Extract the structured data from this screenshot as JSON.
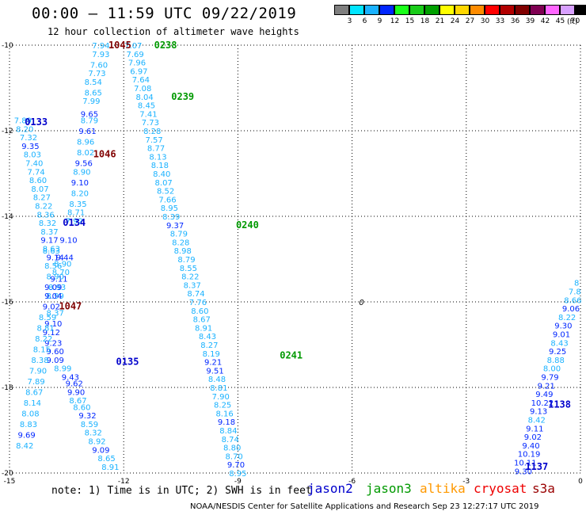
{
  "title": "00:00 – 11:59 UTC 09/22/2019",
  "subtitle": "12 hour collection of altimeter wave heights",
  "colorbar": {
    "unit": "(ft)",
    "colors": [
      "#7f7f7f",
      "#00e5ff",
      "#1ab2ff",
      "#0026ff",
      "#1aff1a",
      "#19cc19",
      "#00a000",
      "#ffff00",
      "#ffd700",
      "#ff8c00",
      "#ff0000",
      "#b20000",
      "#800000",
      "#7f0052",
      "#ff66ff",
      "#d8a0ff",
      "#000000"
    ],
    "labels": [
      "3",
      "6",
      "9",
      "12",
      "15",
      "18",
      "21",
      "24",
      "27",
      "30",
      "33",
      "36",
      "39",
      "42",
      "45",
      "70"
    ]
  },
  "note": "note: 1) Time is in UTC; 2) SWH is in feet",
  "satellites": [
    {
      "name": "jason2",
      "color": "#0000cc"
    },
    {
      "name": "jason3",
      "color": "#009900"
    },
    {
      "name": "altika",
      "color": "#ff9900"
    },
    {
      "name": "cryosat",
      "color": "#ee0000"
    },
    {
      "name": "s3a",
      "color": "#990000"
    }
  ],
  "footer": "NOAA/NESDIS Center for Satellite Applications and Research   Sep 23 12:27:17 UTC 2019",
  "chart_data": {
    "type": "scatter",
    "title": "00:00 – 11:59 UTC 09/22/2019",
    "subtitle": "12 hour collection of altimeter wave heights",
    "xlim": [
      -15,
      0
    ],
    "ylim": [
      -20,
      -10
    ],
    "xticks": [
      -15,
      -12,
      -9,
      -6,
      -3,
      0
    ],
    "yticks": [
      -10,
      -12,
      -14,
      -16,
      -18,
      -20
    ],
    "grid": true,
    "colors": {
      "light": "#1ab2ff",
      "dark": "#0026ff",
      "jason3": "#009900",
      "pass_blue": "#0000cc",
      "pass_red": "#800000"
    },
    "track_labels": [
      {
        "text": "1045",
        "x": -12.1,
        "y": -10.0,
        "color": "pass_red"
      },
      {
        "text": "0238",
        "x": -10.9,
        "y": -10.0,
        "color": "jason3"
      },
      {
        "text": "0239",
        "x": -10.45,
        "y": -11.2,
        "color": "jason3"
      },
      {
        "text": "0133",
        "x": -14.3,
        "y": -11.8,
        "color": "pass_blue"
      },
      {
        "text": "1046",
        "x": -12.5,
        "y": -12.55,
        "color": "pass_red"
      },
      {
        "text": "0134",
        "x": -13.3,
        "y": -14.15,
        "color": "pass_blue"
      },
      {
        "text": "0240",
        "x": -8.75,
        "y": -14.2,
        "color": "jason3"
      },
      {
        "text": "1047",
        "x": -13.4,
        "y": -16.1,
        "color": "pass_red"
      },
      {
        "text": "0135",
        "x": -11.9,
        "y": -17.4,
        "color": "pass_blue"
      },
      {
        "text": "0241",
        "x": -7.6,
        "y": -17.25,
        "color": "jason3"
      },
      {
        "text": "1138",
        "x": -0.55,
        "y": -18.4,
        "color": "pass_blue"
      },
      {
        "text": "1137",
        "x": -1.15,
        "y": -19.85,
        "color": "pass_blue"
      }
    ],
    "marker": {
      "text": "0",
      "x": -5.75,
      "y": -16.0
    },
    "points": [
      [
        "7.94",
        -12.6,
        -10.0,
        0
      ],
      [
        "7.93",
        -12.6,
        -10.2,
        0
      ],
      [
        "7.60",
        -12.65,
        -10.45,
        0
      ],
      [
        "7.73",
        -12.7,
        -10.65,
        0
      ],
      [
        "8.54",
        -12.8,
        -10.85,
        0
      ],
      [
        "8.65",
        -12.8,
        -11.1,
        0
      ],
      [
        "7.99",
        -12.85,
        -11.3,
        0
      ],
      [
        "9.65",
        -12.9,
        -11.6,
        1
      ],
      [
        "8.79",
        -12.9,
        -11.75,
        0
      ],
      [
        "9.61",
        -12.95,
        -12.0,
        1
      ],
      [
        "8.96",
        -13.0,
        -12.25,
        0
      ],
      [
        "8.02",
        -13.0,
        -12.5,
        0
      ],
      [
        "9.56",
        -13.05,
        -12.75,
        1
      ],
      [
        "8.90",
        -13.1,
        -12.95,
        0
      ],
      [
        "9.10",
        -13.15,
        -13.2,
        1
      ],
      [
        "8.20",
        -13.15,
        -13.45,
        0
      ],
      [
        "8.35",
        -13.2,
        -13.7,
        0
      ],
      [
        "8.71",
        -13.25,
        -13.9,
        0
      ],
      [
        "7.92",
        -13.3,
        -14.1,
        0
      ],
      [
        "9.10",
        -13.45,
        -14.55,
        1
      ],
      [
        "9.44",
        -13.55,
        -14.95,
        1
      ],
      [
        "8.90",
        -13.6,
        -15.1,
        0
      ],
      [
        "8.70",
        -13.65,
        -15.3,
        0
      ],
      [
        "9.11",
        -13.7,
        -15.45,
        1
      ],
      [
        "8.93",
        -13.75,
        -15.65,
        0
      ],
      [
        "8.99",
        -13.8,
        -15.85,
        0
      ],
      [
        "8.37",
        -13.8,
        -16.25,
        0
      ],
      [
        "9.10",
        -13.85,
        -16.5,
        1
      ],
      [
        "9.12",
        -13.9,
        -16.7,
        1
      ],
      [
        "9.23",
        -13.85,
        -16.95,
        1
      ],
      [
        "9.60",
        -13.8,
        -17.15,
        1
      ],
      [
        "9.09",
        -13.8,
        -17.35,
        1
      ],
      [
        "8.99",
        -13.6,
        -17.55,
        0
      ],
      [
        "9.43",
        -13.4,
        -17.75,
        1
      ],
      [
        "9.62",
        -13.3,
        -17.9,
        1
      ],
      [
        "9.90",
        -13.25,
        -18.1,
        1
      ],
      [
        "8.67",
        -13.2,
        -18.3,
        0
      ],
      [
        "8.60",
        -13.1,
        -18.45,
        0
      ],
      [
        "9.32",
        -12.95,
        -18.65,
        1
      ],
      [
        "8.59",
        -12.9,
        -18.85,
        0
      ],
      [
        "8.32",
        -12.8,
        -19.05,
        0
      ],
      [
        "8.92",
        -12.7,
        -19.25,
        0
      ],
      [
        "9.09",
        -12.6,
        -19.45,
        1
      ],
      [
        "8.65",
        -12.45,
        -19.65,
        0
      ],
      [
        "8.91",
        -12.35,
        -19.85,
        0
      ],
      [
        "7.89",
        -14.65,
        -11.75,
        0
      ],
      [
        "8.20",
        -14.6,
        -11.95,
        0
      ],
      [
        "7.32",
        -14.5,
        -12.15,
        0
      ],
      [
        "9.35",
        -14.45,
        -12.35,
        1
      ],
      [
        "8.03",
        -14.4,
        -12.55,
        0
      ],
      [
        "7.40",
        -14.35,
        -12.75,
        0
      ],
      [
        "7.74",
        -14.3,
        -12.95,
        0
      ],
      [
        "8.60",
        -14.25,
        -13.15,
        0
      ],
      [
        "8.07",
        -14.2,
        -13.35,
        0
      ],
      [
        "8.27",
        -14.15,
        -13.55,
        0
      ],
      [
        "8.22",
        -14.1,
        -13.75,
        0
      ],
      [
        "8.36",
        -14.05,
        -13.95,
        0
      ],
      [
        "8.32",
        -14.0,
        -14.15,
        0
      ],
      [
        "8.37",
        -13.95,
        -14.35,
        0
      ],
      [
        "9.17",
        -13.95,
        -14.55,
        1
      ],
      [
        "8.63",
        -13.9,
        -14.75,
        0
      ],
      [
        "8.63",
        -13.9,
        -14.8,
        0
      ],
      [
        "9.14",
        -13.8,
        -14.95,
        1
      ],
      [
        "8.56",
        -13.85,
        -15.15,
        0
      ],
      [
        "8.90",
        -13.8,
        -15.4,
        0
      ],
      [
        "9.09",
        -13.85,
        -15.65,
        1
      ],
      [
        "9.04",
        -13.85,
        -15.85,
        1
      ],
      [
        "9.02",
        -13.9,
        -16.1,
        1
      ],
      [
        "8.59",
        -14.0,
        -16.35,
        0
      ],
      [
        "8.81",
        -14.05,
        -16.6,
        0
      ],
      [
        "8.22",
        -14.1,
        -16.85,
        0
      ],
      [
        "8.15",
        -14.15,
        -17.1,
        0
      ],
      [
        "8.38",
        -14.2,
        -17.35,
        0
      ],
      [
        "7.90",
        -14.25,
        -17.6,
        0
      ],
      [
        "7.89",
        -14.3,
        -17.85,
        0
      ],
      [
        "8.67",
        -14.35,
        -18.1,
        0
      ],
      [
        "8.14",
        -14.4,
        -18.35,
        0
      ],
      [
        "8.08",
        -14.45,
        -18.6,
        0
      ],
      [
        "8.83",
        -14.5,
        -18.85,
        0
      ],
      [
        "9.69",
        -14.55,
        -19.1,
        1
      ],
      [
        "8.42",
        -14.6,
        -19.35,
        0
      ],
      [
        "7.07",
        -11.75,
        -10.0,
        0
      ],
      [
        "7.69",
        -11.7,
        -10.2,
        0
      ],
      [
        "7.96",
        -11.65,
        -10.4,
        0
      ],
      [
        "6.97",
        -11.6,
        -10.6,
        0
      ],
      [
        "7.64",
        -11.55,
        -10.8,
        0
      ],
      [
        "7.08",
        -11.5,
        -11.0,
        0
      ],
      [
        "8.04",
        -11.45,
        -11.2,
        0
      ],
      [
        "8.45",
        -11.4,
        -11.4,
        0
      ],
      [
        "7.41",
        -11.35,
        -11.6,
        0
      ],
      [
        "7.73",
        -11.3,
        -11.8,
        0
      ],
      [
        "8.28",
        -11.25,
        -12.0,
        0
      ],
      [
        "7.57",
        -11.2,
        -12.2,
        0
      ],
      [
        "8.77",
        -11.15,
        -12.4,
        0
      ],
      [
        "8.13",
        -11.1,
        -12.6,
        0
      ],
      [
        "8.18",
        -11.05,
        -12.8,
        0
      ],
      [
        "8.40",
        -11.0,
        -13.0,
        0
      ],
      [
        "8.07",
        -10.95,
        -13.2,
        0
      ],
      [
        "8.52",
        -10.9,
        -13.4,
        0
      ],
      [
        "7.66",
        -10.85,
        -13.6,
        0
      ],
      [
        "8.95",
        -10.8,
        -13.8,
        0
      ],
      [
        "8.39",
        -10.75,
        -14.0,
        0
      ],
      [
        "9.37",
        -10.65,
        -14.2,
        1
      ],
      [
        "8.79",
        -10.55,
        -14.4,
        0
      ],
      [
        "8.28",
        -10.5,
        -14.6,
        0
      ],
      [
        "8.98",
        -10.45,
        -14.8,
        0
      ],
      [
        "8.79",
        -10.35,
        -15.0,
        0
      ],
      [
        "8.55",
        -10.3,
        -15.2,
        0
      ],
      [
        "8.22",
        -10.25,
        -15.4,
        0
      ],
      [
        "8.37",
        -10.2,
        -15.6,
        0
      ],
      [
        "8.74",
        -10.1,
        -15.8,
        0
      ],
      [
        "7.76",
        -10.05,
        -16.0,
        0
      ],
      [
        "8.60",
        -10.0,
        -16.2,
        0
      ],
      [
        "8.67",
        -9.95,
        -16.4,
        0
      ],
      [
        "8.91",
        -9.9,
        -16.6,
        0
      ],
      [
        "8.43",
        -9.8,
        -16.8,
        0
      ],
      [
        "8.27",
        -9.75,
        -17.0,
        0
      ],
      [
        "8.19",
        -9.7,
        -17.2,
        0
      ],
      [
        "9.21",
        -9.65,
        -17.4,
        1
      ],
      [
        "9.51",
        -9.6,
        -17.6,
        1
      ],
      [
        "8.48",
        -9.55,
        -17.8,
        0
      ],
      [
        "8.81",
        -9.5,
        -18.0,
        0
      ],
      [
        "7.90",
        -9.45,
        -18.2,
        0
      ],
      [
        "8.25",
        -9.4,
        -18.4,
        0
      ],
      [
        "8.16",
        -9.35,
        -18.6,
        0
      ],
      [
        "9.18",
        -9.3,
        -18.8,
        1
      ],
      [
        "8.84",
        -9.25,
        -19.0,
        0
      ],
      [
        "8.74",
        -9.2,
        -19.2,
        0
      ],
      [
        "8.80",
        -9.15,
        -19.4,
        0
      ],
      [
        "8.70",
        -9.1,
        -19.6,
        0
      ],
      [
        "9.70",
        -9.05,
        -19.8,
        1
      ],
      [
        "8.95",
        -9.0,
        -20.0,
        0
      ],
      [
        "8",
        -0.1,
        -15.55,
        0
      ],
      [
        "7.8",
        -0.15,
        -15.75,
        0
      ],
      [
        "8.66",
        -0.2,
        -15.95,
        0
      ],
      [
        "9.06",
        -0.25,
        -16.15,
        1
      ],
      [
        "8.22",
        -0.35,
        -16.35,
        0
      ],
      [
        "9.30",
        -0.45,
        -16.55,
        1
      ],
      [
        "9.01",
        -0.5,
        -16.75,
        1
      ],
      [
        "8.43",
        -0.55,
        -16.95,
        0
      ],
      [
        "9.25",
        -0.6,
        -17.15,
        1
      ],
      [
        "8.88",
        -0.65,
        -17.35,
        0
      ],
      [
        "8.00",
        -0.75,
        -17.55,
        0
      ],
      [
        "9.79",
        -0.8,
        -17.75,
        1
      ],
      [
        "9.21",
        -0.9,
        -17.95,
        1
      ],
      [
        "9.49",
        -0.95,
        -18.15,
        1
      ],
      [
        "10.22",
        -1.0,
        -18.35,
        1
      ],
      [
        "9.13",
        -1.1,
        -18.55,
        1
      ],
      [
        "8.42",
        -1.15,
        -18.75,
        0
      ],
      [
        "9.11",
        -1.2,
        -18.95,
        1
      ],
      [
        "9.02",
        -1.25,
        -19.15,
        1
      ],
      [
        "9.40",
        -1.3,
        -19.35,
        1
      ],
      [
        "10.19",
        -1.35,
        -19.55,
        1
      ],
      [
        "10.11",
        -1.45,
        -19.75,
        1
      ],
      [
        "9.30",
        -1.5,
        -19.95,
        1
      ]
    ]
  }
}
